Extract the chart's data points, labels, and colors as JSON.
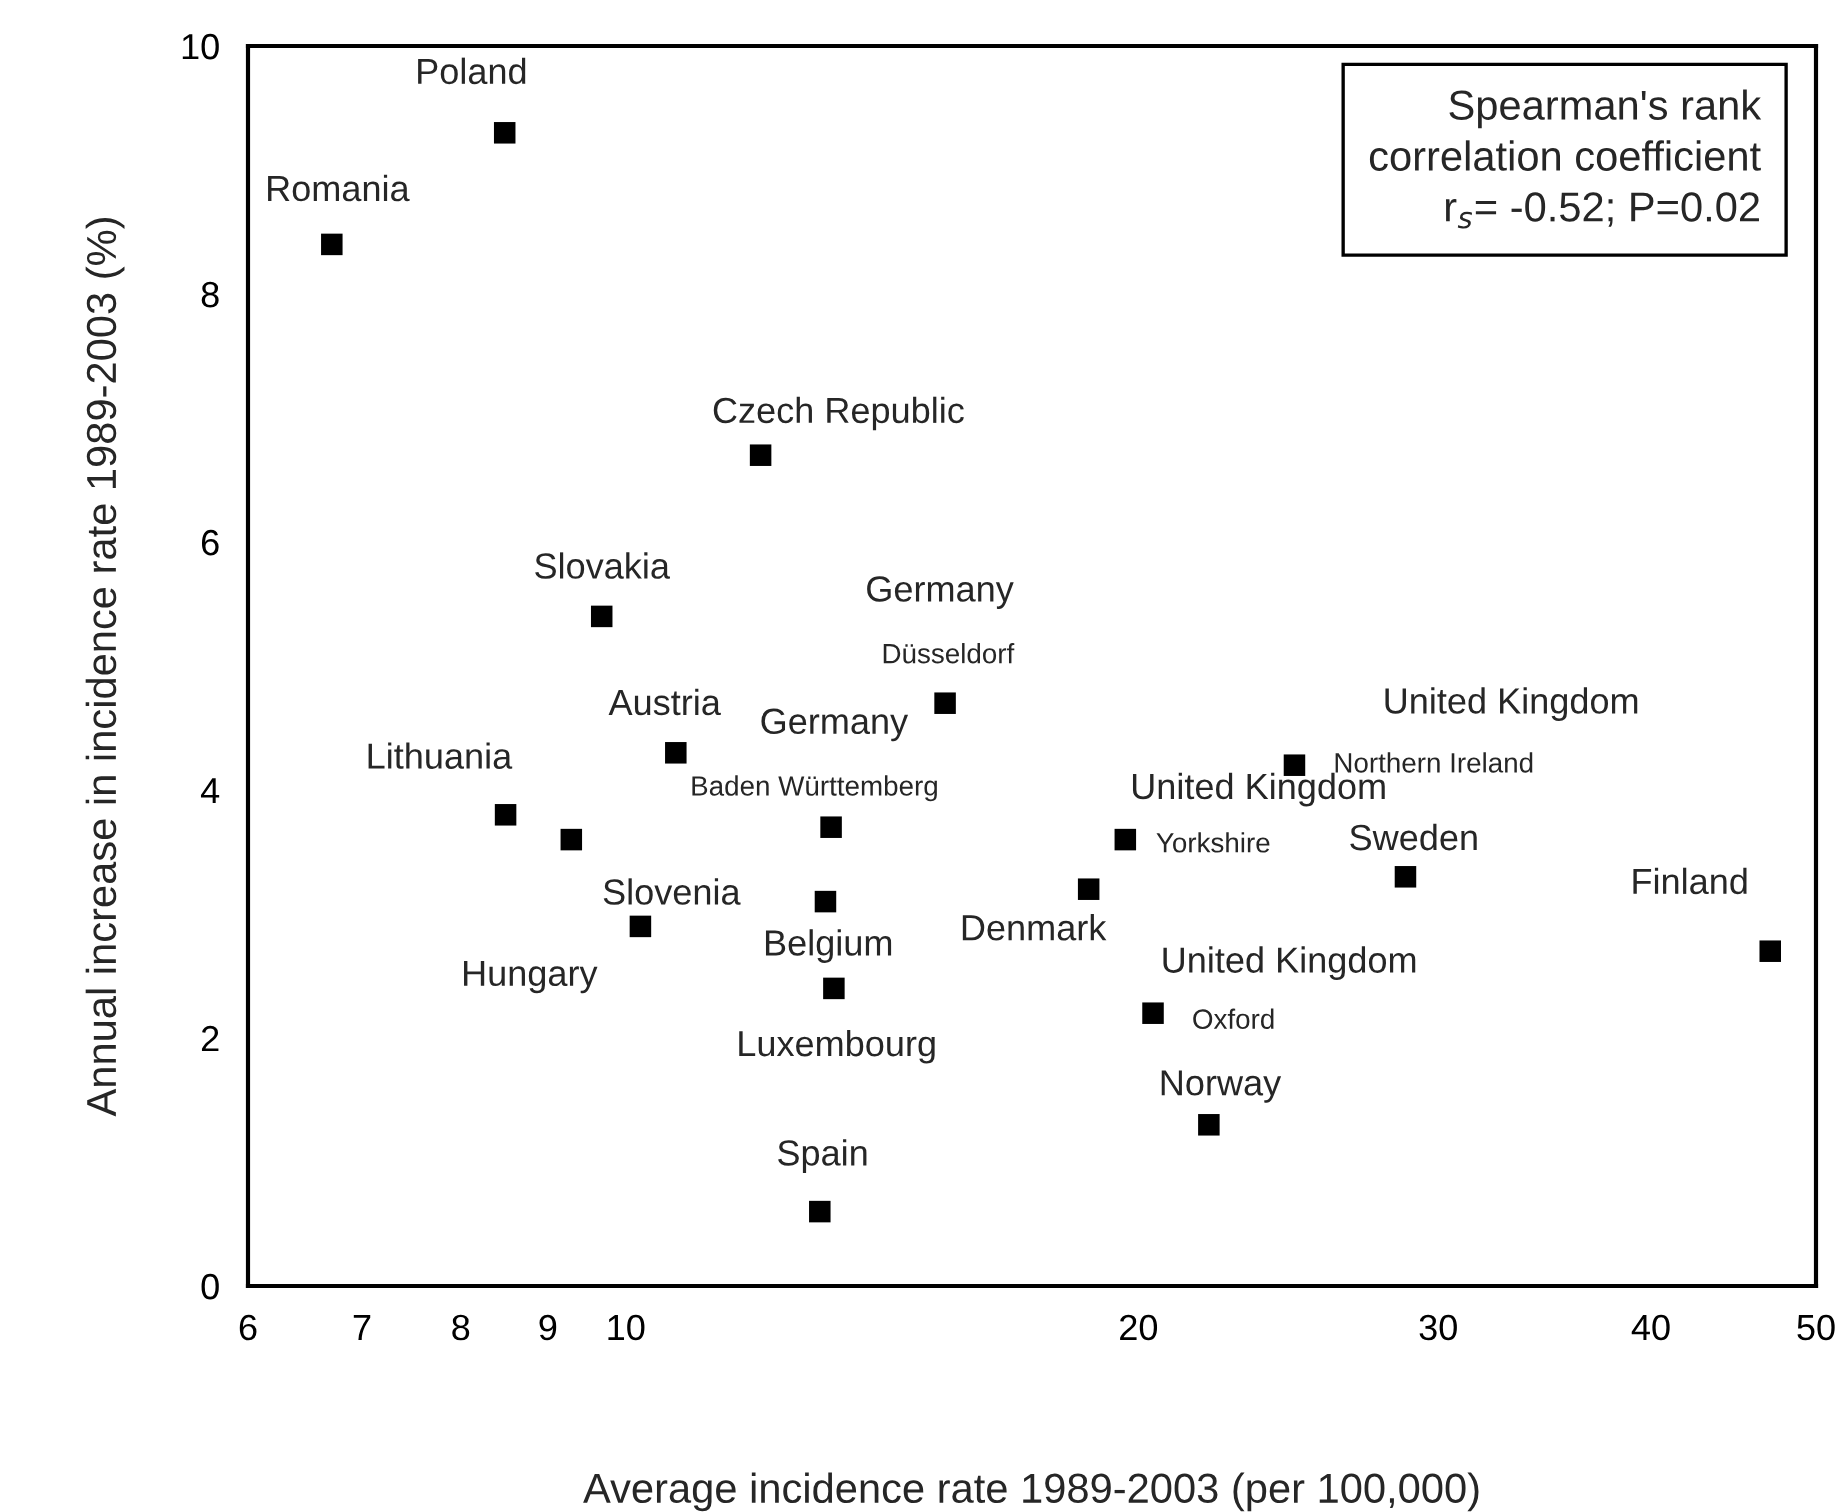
{
  "chart_data": {
    "type": "scatter",
    "xlabel": "Average incidence rate 1989-2003 (per 100,000)",
    "ylabel": "Annual increase in incidence rate 1989-2003 (%)",
    "log": "x",
    "xlim": [
      6,
      50
    ],
    "xticks": [
      6,
      7,
      8,
      9,
      10,
      20,
      30,
      40,
      50
    ],
    "ylim": [
      0,
      10
    ],
    "yticks": [
      0,
      2,
      4,
      6,
      8,
      10
    ],
    "grid": false,
    "marker": "square",
    "series": [
      {
        "color": "#000000",
        "x": [
          8.49,
          6.72,
          12.0,
          9.68,
          15.4,
          10.7,
          13.2,
          8.5,
          9.29,
          13.1,
          10.2,
          13.25,
          13.0,
          24.7,
          19.65,
          18.7,
          28.7,
          47.0,
          20.4,
          22.0
        ],
        "values": [
          9.3,
          8.4,
          6.7,
          5.4,
          4.7,
          4.3,
          3.7,
          3.8,
          3.6,
          3.1,
          2.9,
          2.4,
          0.6,
          4.2,
          3.6,
          3.2,
          3.3,
          2.7,
          2.2,
          1.3
        ]
      }
    ],
    "annotations": [
      {
        "text": "Poland",
        "x": 8.49,
        "y": 9.3
      },
      {
        "text": "Romania",
        "x": 6.72,
        "y": 8.4
      },
      {
        "text": "Czech Republic",
        "x": 12.0,
        "y": 6.7
      },
      {
        "text": "Slovakia",
        "x": 9.68,
        "y": 5.4
      },
      {
        "text": "Germany",
        "x": 15.4,
        "y": 4.7
      },
      {
        "text": "Düsseldorf",
        "x": 15.4,
        "y": 4.7
      },
      {
        "text": "Austria",
        "x": 10.7,
        "y": 4.3
      },
      {
        "text": "Germany",
        "x": 13.2,
        "y": 3.7
      },
      {
        "text": "Baden Württemberg",
        "x": 13.2,
        "y": 3.7
      },
      {
        "text": "Lithuania",
        "x": 8.5,
        "y": 3.8
      },
      {
        "text": "Slovenia",
        "x": 9.29,
        "y": 3.6
      },
      {
        "text": "Belgium",
        "x": 13.1,
        "y": 3.1
      },
      {
        "text": "Hungary",
        "x": 10.2,
        "y": 2.9
      },
      {
        "text": "Luxembourg",
        "x": 13.25,
        "y": 2.4
      },
      {
        "text": "Spain",
        "x": 13.0,
        "y": 0.6
      },
      {
        "text": "United Kingdom",
        "x": 24.7,
        "y": 4.2
      },
      {
        "text": "Northern Ireland",
        "x": 24.7,
        "y": 4.2
      },
      {
        "text": "United Kingdom",
        "x": 19.65,
        "y": 3.6
      },
      {
        "text": "Yorkshire",
        "x": 19.65,
        "y": 3.6
      },
      {
        "text": "Denmark",
        "x": 18.7,
        "y": 3.2
      },
      {
        "text": "Sweden",
        "x": 28.7,
        "y": 3.3
      },
      {
        "text": "Finland",
        "x": 47.0,
        "y": 2.7
      },
      {
        "text": "United Kingdom",
        "x": 20.4,
        "y": 2.2
      },
      {
        "text": "Oxford",
        "x": 20.4,
        "y": 2.2
      },
      {
        "text": "Norway",
        "x": 22.0,
        "y": 1.3
      },
      "Spearman's rank\ncorrelation coefficient\nr$_{s}$= -0.52; P=0.02"
    ]
  }
}
